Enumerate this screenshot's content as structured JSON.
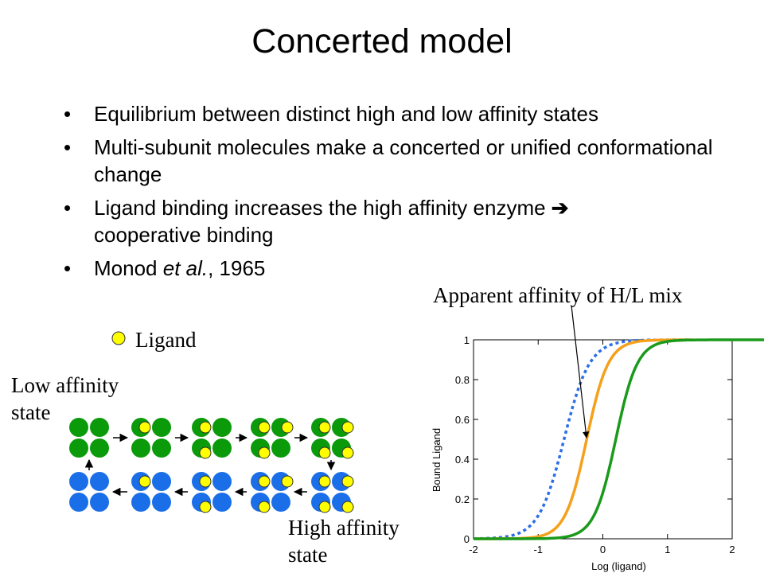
{
  "slide": {
    "title": "Concerted model",
    "bullets": [
      "Equilibrium between distinct high and low affinity states",
      "Multi-subunit molecules make a concerted or unified conformational change",
      "Ligand binding increases the high affinity enzyme ",
      "Monod "
    ],
    "bullet3_tail": "cooperative binding",
    "bullet4_italic": "et al.",
    "bullet4_tail": ", 1965"
  },
  "legend": {
    "ligand_label": "Ligand"
  },
  "states": {
    "low_label_line1": "Low affinity",
    "low_label_line2": "state",
    "high_label_line1": "High affinity",
    "high_label_line2": "state"
  },
  "annotation": "Apparent affinity of H/L mix",
  "colors": {
    "low_state": "#0a9a0a",
    "high_state": "#1a6ee8",
    "ligand": "#ffff00",
    "curve_orange": "#f5a01a",
    "curve_green": "#1a9a1a",
    "curve_blue": "#2a6ee8"
  },
  "chart_data": {
    "type": "line",
    "xlabel": "Log (ligand)",
    "ylabel": "Bound Ligand",
    "xlim": [
      -2,
      2
    ],
    "ylim": [
      0,
      1
    ],
    "x_ticks": [
      "-2",
      "-1",
      "0",
      "1",
      "2"
    ],
    "y_ticks": [
      "0",
      "0.2",
      "0.4",
      "0.6",
      "0.8",
      "1"
    ],
    "series": [
      {
        "style": "dotted",
        "color": "#2a6ee8",
        "midpoint": -0.6,
        "hill": 2.2,
        "x_range": [
          -2,
          1.3
        ]
      },
      {
        "style": "solid",
        "color": "#f5a01a",
        "midpoint": -0.25,
        "hill": 2.6,
        "x_range": [
          -2,
          1.4
        ]
      },
      {
        "style": "solid",
        "color": "#1a9a1a",
        "midpoint": 0.2,
        "hill": 2.6,
        "x_range": [
          -2,
          2.8
        ]
      }
    ]
  }
}
